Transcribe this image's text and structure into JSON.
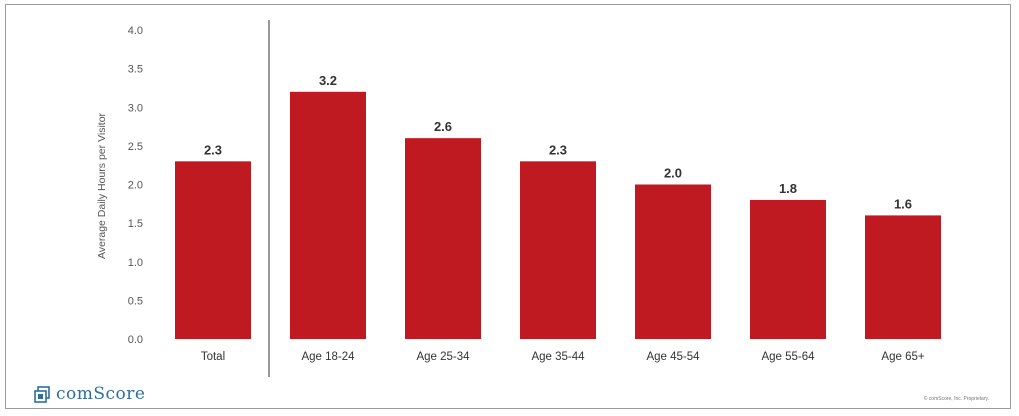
{
  "chart_data": {
    "type": "bar",
    "categories": [
      "Total",
      "Age 18-24",
      "Age 25-34",
      "Age 35-44",
      "Age 45-54",
      "Age 55-64",
      "Age 65+"
    ],
    "values": [
      2.3,
      3.2,
      2.6,
      2.3,
      2.0,
      1.8,
      1.6
    ],
    "value_labels": [
      "2.3",
      "3.2",
      "2.6",
      "2.3",
      "2.0",
      "1.8",
      "1.6"
    ],
    "title": "",
    "xlabel": "",
    "ylabel": "Average Daily Hours per Visitor",
    "ylim": [
      0,
      4.0
    ],
    "yticks": [
      "0.0",
      "0.5",
      "1.0",
      "1.5",
      "2.0",
      "2.5",
      "3.0",
      "3.5",
      "4.0"
    ],
    "bar_color": "#bf1a22",
    "grid": false,
    "separator_after_first_category": true
  },
  "branding": {
    "logo_text": "comScore",
    "logo_color": "#2e6e9e",
    "copyright": "© comScore, Inc. Proprietary."
  }
}
